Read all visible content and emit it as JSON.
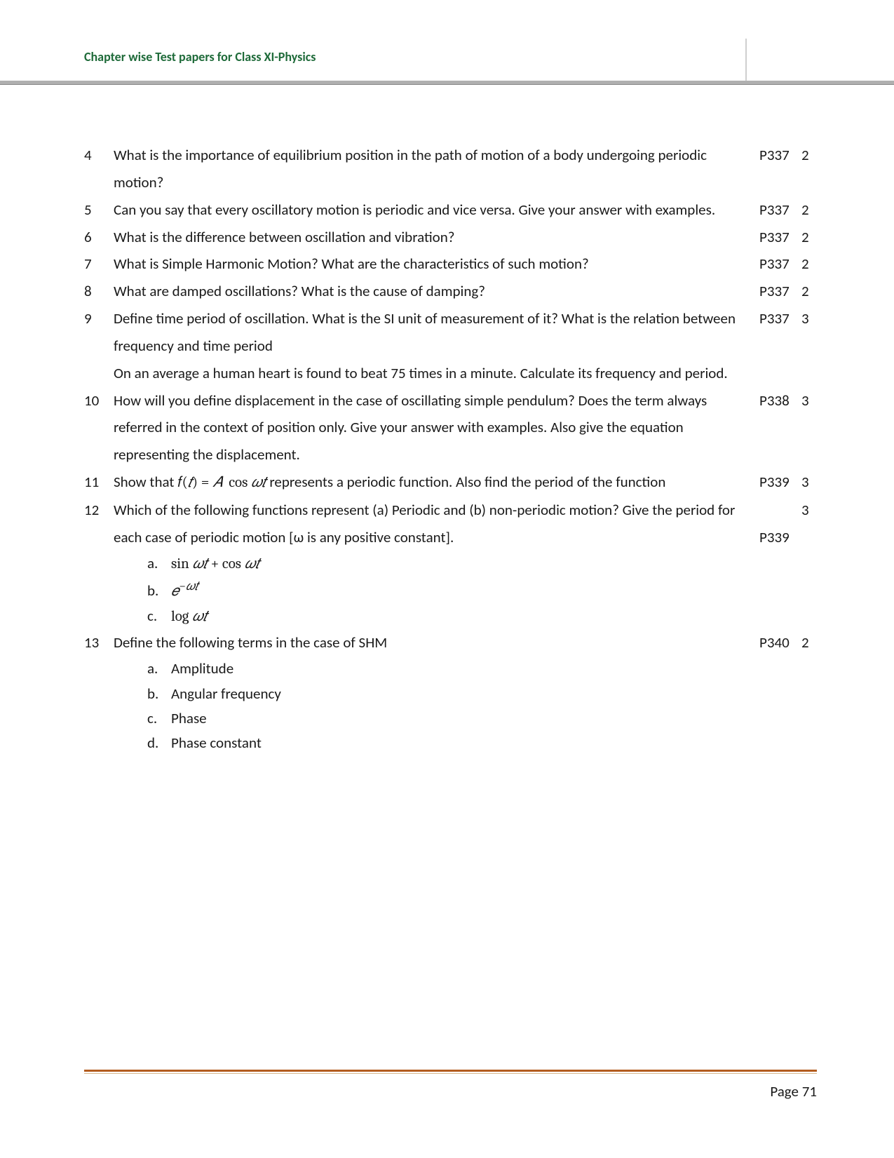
{
  "header": {
    "title": "Chapter wise Test papers for Class XI-Physics",
    "title_color": "#1f6b3a"
  },
  "footer": {
    "label": "Page 71",
    "rule_color_top": "#b35c1e",
    "rule_color_bottom": "#d9b98f"
  },
  "colors": {
    "text": "#1a1a1a",
    "background": "#ffffff",
    "divider": "#b0b0b0"
  },
  "questions": [
    {
      "num": "4",
      "text": "What is the importance of equilibrium position in the path of motion of a body undergoing periodic motion?",
      "page": "P337",
      "marks": "2"
    },
    {
      "num": "5",
      "text": "Can you say that every oscillatory motion is periodic and vice versa. Give your answer with examples.",
      "page": "P337",
      "marks": "2"
    },
    {
      "num": "6",
      "text": "What is the difference between oscillation and vibration?",
      "page": "P337",
      "marks": "2"
    },
    {
      "num": "7",
      "text": "What is Simple Harmonic Motion? What are the characteristics of such motion?",
      "page": "P337",
      "marks": "2"
    },
    {
      "num": "8",
      "text": "What are damped oscillations? What is the cause of damping?",
      "page": "P337",
      "marks": "2"
    },
    {
      "num": "9",
      "text_line1": "Define time period of oscillation. What is the SI unit of measurement of it? What is the relation between frequency and time period",
      "text_line2": "On an average a human heart is found to beat 75 times in a minute. Calculate its frequency and period.",
      "page": "P337",
      "marks": "3"
    },
    {
      "num": "10",
      "text": "How will you define displacement in the case of oscillating simple pendulum? Does the term always referred in the context of position only. Give your answer with examples. Also give the equation representing the displacement.",
      "page": "P338",
      "marks": "3"
    },
    {
      "num": "11",
      "text_before": "Show that ",
      "math": "f(t) = A  cos ωt",
      "text_after": "  represents a periodic function. Also find the period of the function",
      "page": "P339",
      "marks": "3"
    },
    {
      "num": "12",
      "text": "Which of the following functions represent (a) Periodic and (b) non-periodic motion? Give the period for each case of periodic motion [ω is any positive constant].",
      "page": "P339",
      "marks": "3",
      "subitems": [
        {
          "letter": "a.",
          "math": "sin ωt + cos ωt"
        },
        {
          "letter": "b.",
          "math_html": "e<sup>−ωt</sup>"
        },
        {
          "letter": "c.",
          "math": "log ωt"
        }
      ]
    },
    {
      "num": "13",
      "text": "Define the following terms in the case of SHM",
      "page": "P340",
      "marks": "2",
      "subitems": [
        {
          "letter": "a.",
          "text": "Amplitude"
        },
        {
          "letter": "b.",
          "text": "Angular frequency"
        },
        {
          "letter": "c.",
          "text": "Phase"
        },
        {
          "letter": "d.",
          "text": "Phase constant"
        }
      ]
    }
  ]
}
